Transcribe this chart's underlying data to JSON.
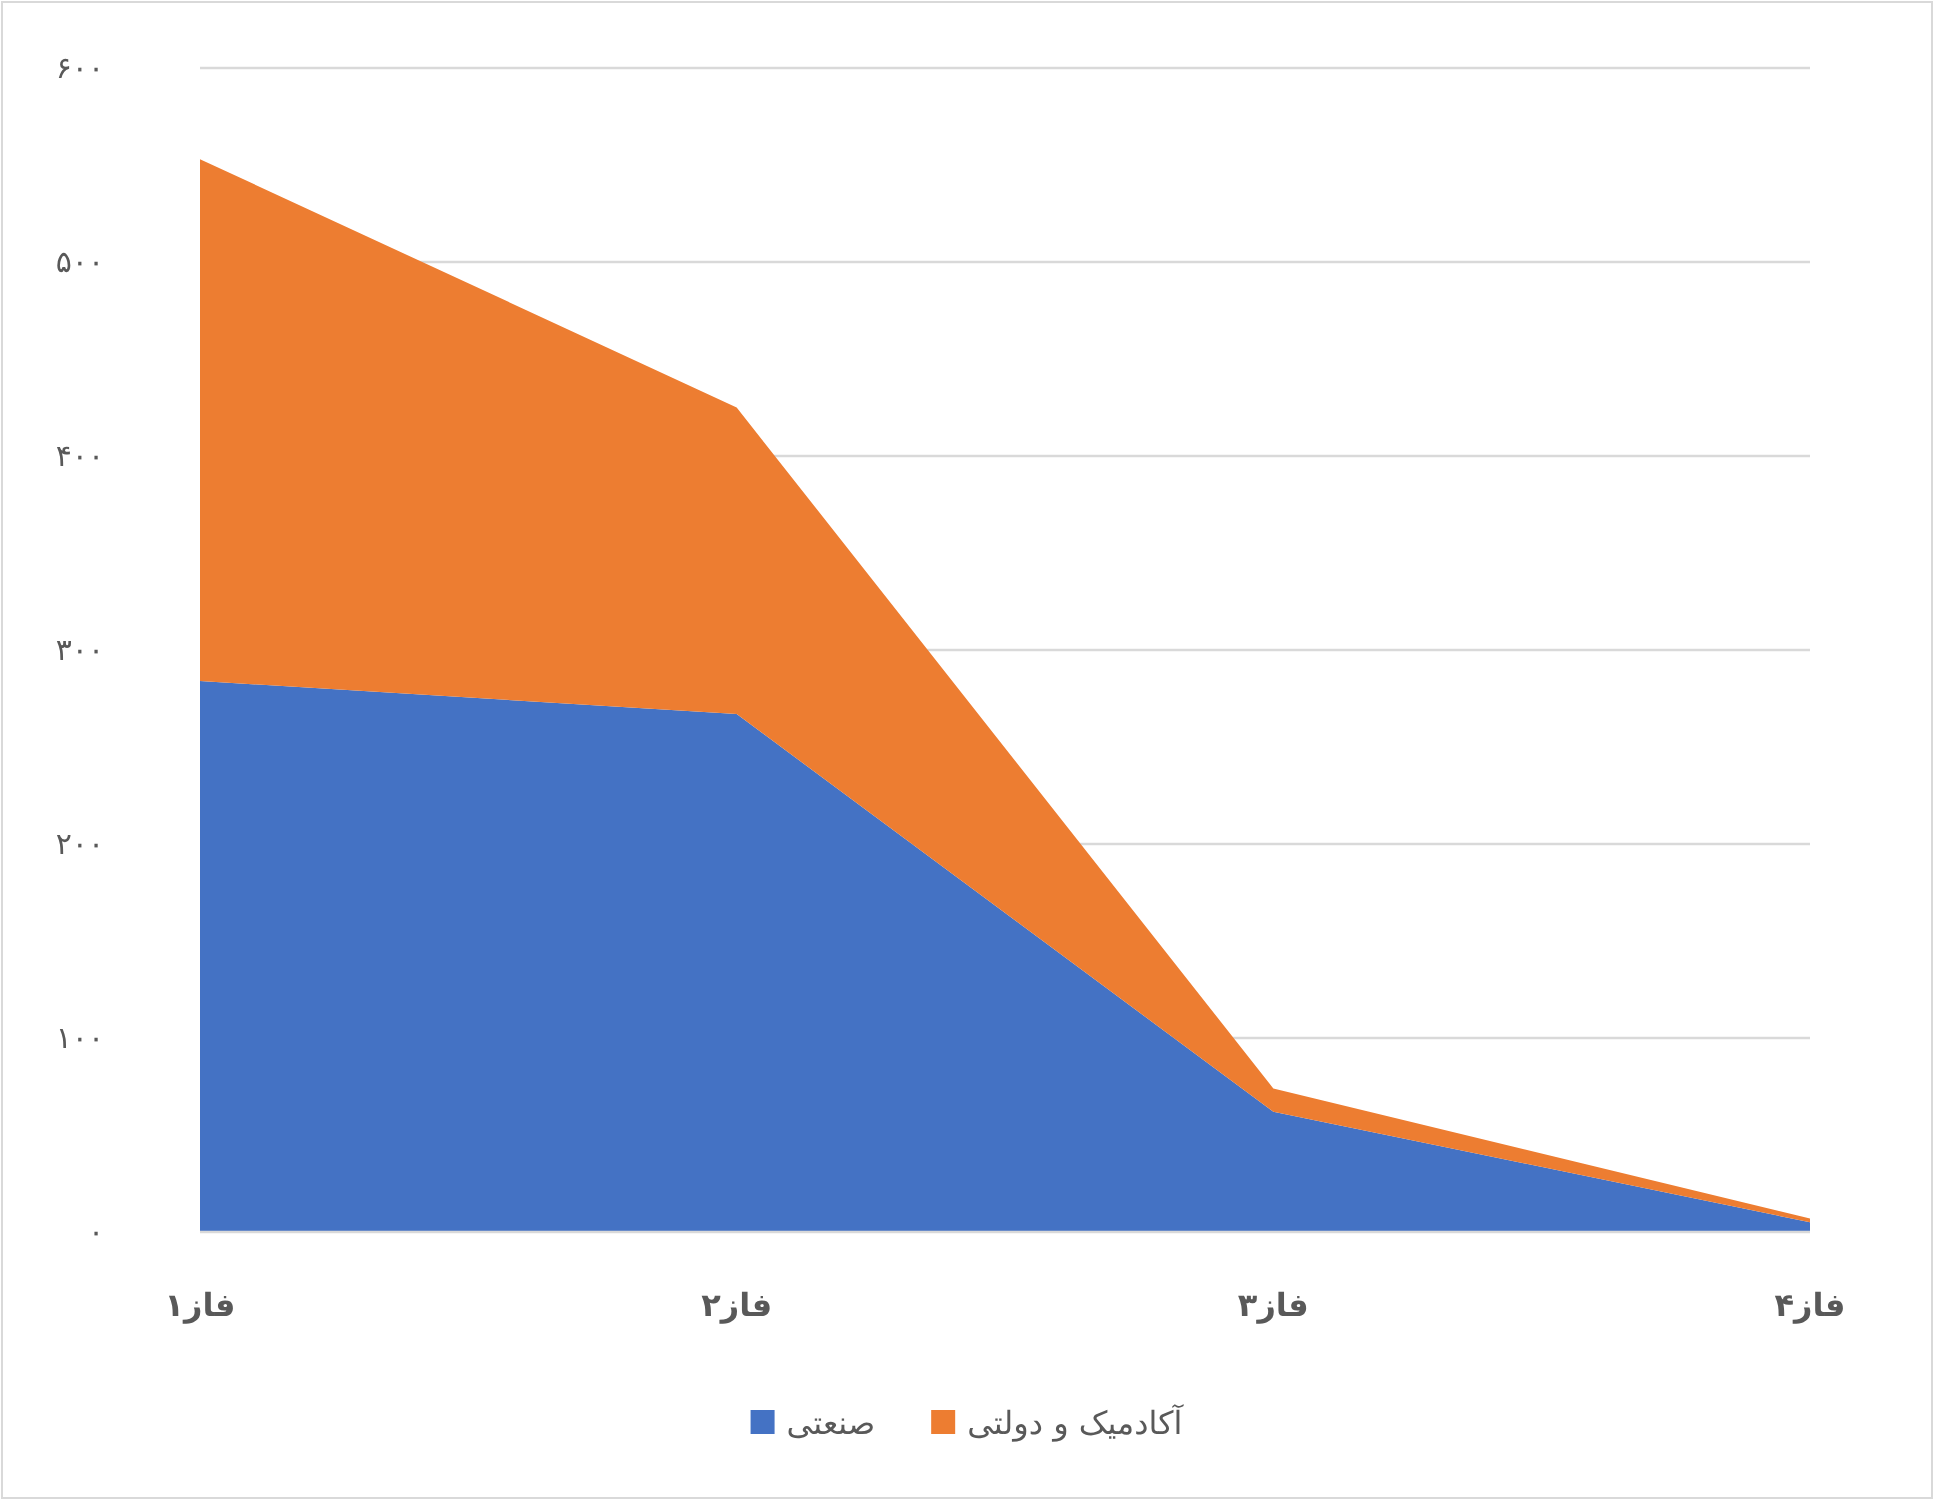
{
  "chart_data": {
    "type": "area",
    "stacked": true,
    "legend": "bottom",
    "grid": "y",
    "categories": [
      "فاز۱",
      "فاز۲",
      "فاز۳",
      "فاز۴"
    ],
    "series": [
      {
        "name": "صنعتی",
        "color": "#4472c4",
        "values": [
          284,
          267,
          62,
          5
        ]
      },
      {
        "name": "آکادمیک و دولتی",
        "color": "#ed7d31",
        "values": [
          269,
          158,
          12,
          2
        ]
      }
    ],
    "ylim": [
      0,
      600
    ],
    "yticks": [
      {
        "value": 0,
        "label": "۰"
      },
      {
        "value": 100,
        "label": "۱۰۰"
      },
      {
        "value": 200,
        "label": "۲۰۰"
      },
      {
        "value": 300,
        "label": "۳۰۰"
      },
      {
        "value": 400,
        "label": "۴۰۰"
      },
      {
        "value": 500,
        "label": "۵۰۰"
      },
      {
        "value": 600,
        "label": "۶۰۰"
      }
    ]
  }
}
